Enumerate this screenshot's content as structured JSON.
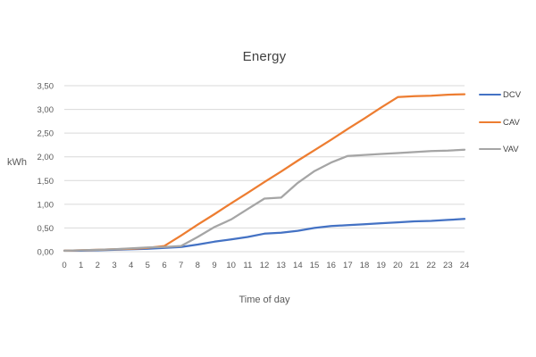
{
  "chart_data": {
    "type": "line",
    "title": "Energy",
    "xlabel": "Time of day",
    "ylabel": "kWh",
    "x": [
      0,
      1,
      2,
      3,
      4,
      5,
      6,
      7,
      8,
      9,
      10,
      11,
      12,
      13,
      14,
      15,
      16,
      17,
      18,
      19,
      20,
      21,
      22,
      23,
      24
    ],
    "x_tick_labels": [
      "0",
      "1",
      "2",
      "3",
      "4",
      "5",
      "6",
      "7",
      "8",
      "9",
      "10",
      "11",
      "12",
      "13",
      "14",
      "15",
      "16",
      "17",
      "18",
      "19",
      "20",
      "21",
      "22",
      "23",
      "24"
    ],
    "y_tick_labels": [
      "0,00",
      "0,50",
      "1,00",
      "1,50",
      "2,00",
      "2,50",
      "3,00",
      "3,50"
    ],
    "y_ticks": [
      0,
      0.5,
      1,
      1.5,
      2,
      2.5,
      3,
      3.5
    ],
    "ylim": [
      0,
      3.5
    ],
    "grid": "horizontal",
    "legend_position": "right",
    "series": [
      {
        "name": "DCV",
        "color": "#4472C4",
        "values": [
          0.02,
          0.02,
          0.03,
          0.04,
          0.05,
          0.06,
          0.08,
          0.1,
          0.15,
          0.21,
          0.26,
          0.31,
          0.38,
          0.4,
          0.44,
          0.5,
          0.54,
          0.56,
          0.58,
          0.6,
          0.62,
          0.64,
          0.65,
          0.67,
          0.69
        ]
      },
      {
        "name": "CAV",
        "color": "#ED7D31",
        "values": [
          0.02,
          0.03,
          0.04,
          0.05,
          0.06,
          0.08,
          0.12,
          0.34,
          0.57,
          0.79,
          1.02,
          1.24,
          1.47,
          1.69,
          1.92,
          2.14,
          2.36,
          2.59,
          2.81,
          3.04,
          3.26,
          3.28,
          3.29,
          3.31,
          3.32
        ]
      },
      {
        "name": "VAV",
        "color": "#A5A5A5",
        "values": [
          0.02,
          0.03,
          0.04,
          0.05,
          0.07,
          0.09,
          0.1,
          0.12,
          0.31,
          0.52,
          0.68,
          0.9,
          1.12,
          1.14,
          1.45,
          1.7,
          1.88,
          2.02,
          2.04,
          2.06,
          2.08,
          2.1,
          2.12,
          2.13,
          2.15
        ]
      }
    ],
    "colors": {
      "grid": "#D9D9D9",
      "tick_text": "#595959",
      "title_text": "#404040"
    }
  }
}
